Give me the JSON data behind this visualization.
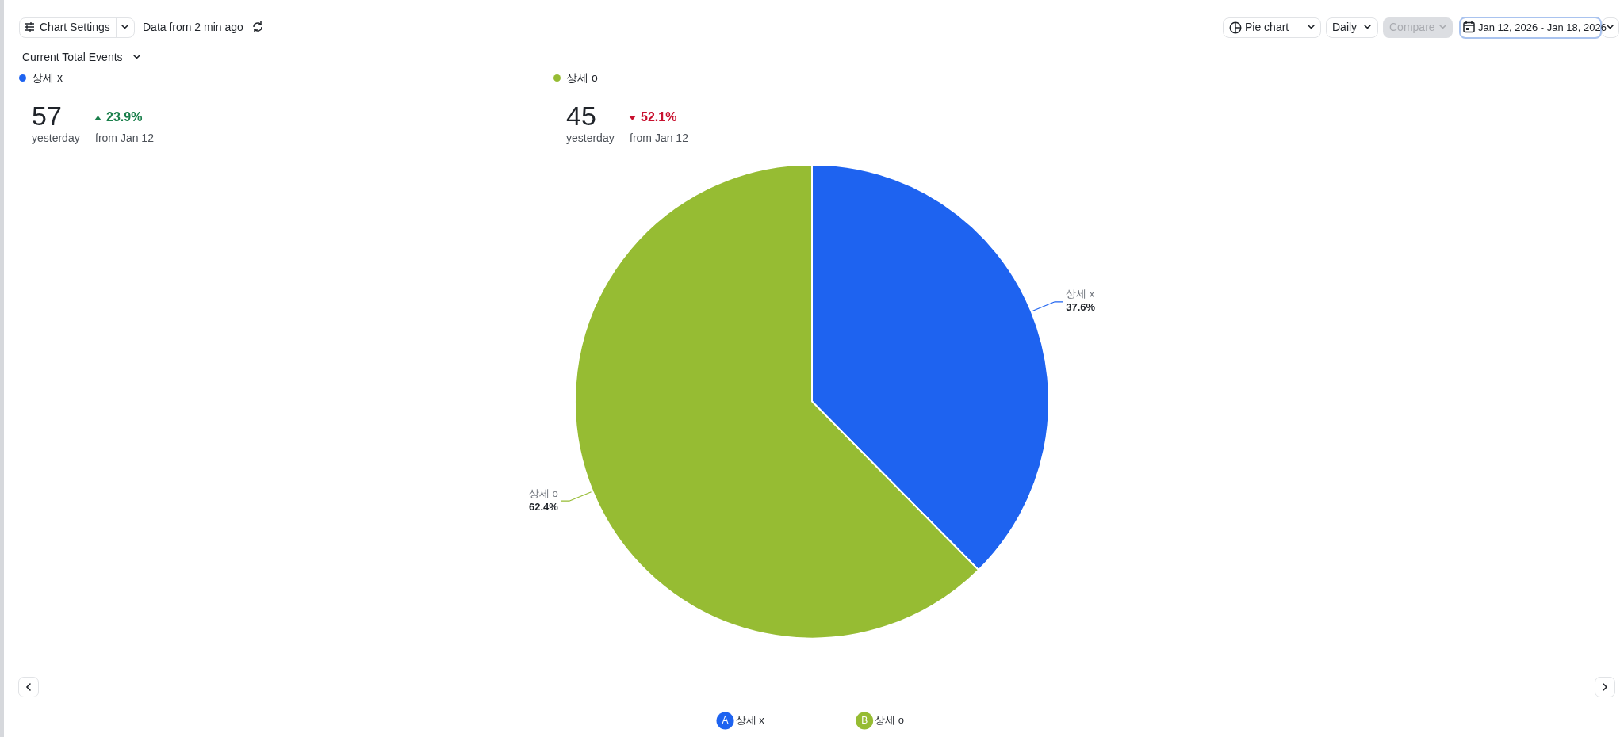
{
  "chart_data": {
    "type": "pie",
    "categories": [
      "상세 x",
      "상세 o"
    ],
    "values": [
      37.6,
      62.4
    ],
    "colors": [
      "#1e63f0",
      "#96bc33"
    ],
    "value_labels": [
      "37.6%",
      "62.4%"
    ],
    "legend": "bottom",
    "annotations": [
      "Chart Settings",
      "Data from 2 min ago",
      "Current Total Events",
      "57",
      "yesterday",
      "23.9%",
      "from Jan 12",
      "45",
      "yesterday",
      "52.1%",
      "from Jan 12",
      "Pie chart",
      "Daily",
      "Compare",
      "Jan 12, 2026 - Jan 18, 2026",
      "A",
      "B"
    ]
  }
}
